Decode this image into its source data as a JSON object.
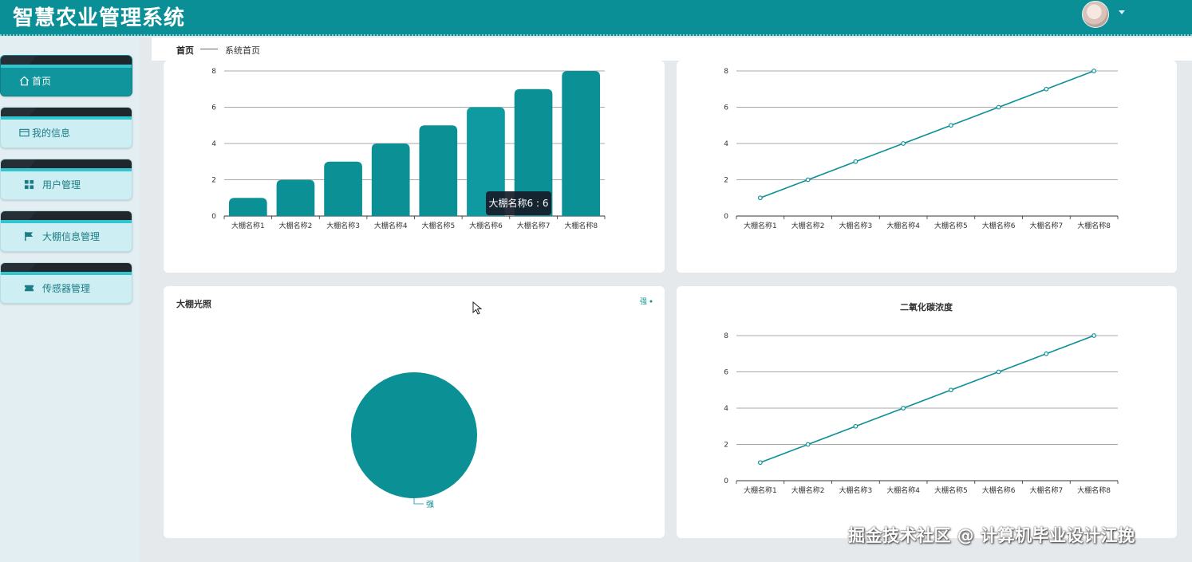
{
  "app": {
    "title": "智慧农业管理系统"
  },
  "sidebar": {
    "items": [
      {
        "label": "首页",
        "icon": "home-icon",
        "active": true
      },
      {
        "label": "我的信息",
        "icon": "id-card-icon",
        "active": false
      },
      {
        "label": "用户管理",
        "icon": "grid-icon",
        "active": false
      },
      {
        "label": "大棚信息管理",
        "icon": "flag-icon",
        "active": false
      },
      {
        "label": "传感器管理",
        "icon": "ticket-icon",
        "active": false
      }
    ]
  },
  "breadcrumb": {
    "home": "首页",
    "current": "系统首页"
  },
  "tooltip": "大棚名称6 : 6",
  "panels": {
    "light": {
      "title": "大棚光照",
      "legend": "强"
    },
    "co2": {
      "title": "二氧化碳浓度"
    }
  },
  "watermark": "掘金技术社区 @ 计算机毕业设计江挽",
  "colors": {
    "primary": "#0a8f96",
    "series": "#0b9096"
  },
  "chart_data": [
    {
      "type": "bar",
      "title": "",
      "categories": [
        "大棚名称1",
        "大棚名称2",
        "大棚名称3",
        "大棚名称4",
        "大棚名称5",
        "大棚名称6",
        "大棚名称7",
        "大棚名称8"
      ],
      "values": [
        1,
        2,
        3,
        4,
        5,
        6,
        7,
        8
      ],
      "ylim": [
        0,
        8
      ],
      "yticks": [
        0,
        2,
        4,
        6,
        8
      ],
      "grid": true
    },
    {
      "type": "line",
      "title": "",
      "categories": [
        "大棚名称1",
        "大棚名称2",
        "大棚名称3",
        "大棚名称4",
        "大棚名称5",
        "大棚名称6",
        "大棚名称7",
        "大棚名称8"
      ],
      "values": [
        1,
        2,
        3,
        4,
        5,
        6,
        7,
        8
      ],
      "ylim": [
        0,
        8
      ],
      "yticks": [
        0,
        2,
        4,
        6,
        8
      ],
      "grid": true
    },
    {
      "type": "pie",
      "title": "大棚光照",
      "slices": [
        {
          "name": "强",
          "value": 1
        }
      ],
      "legend": "top-right"
    },
    {
      "type": "line",
      "title": "二氧化碳浓度",
      "categories": [
        "大棚名称1",
        "大棚名称2",
        "大棚名称3",
        "大棚名称4",
        "大棚名称5",
        "大棚名称6",
        "大棚名称7",
        "大棚名称8"
      ],
      "values": [
        1,
        2,
        3,
        4,
        5,
        6,
        7,
        8
      ],
      "ylim": [
        0,
        8
      ],
      "yticks": [
        0,
        2,
        4,
        6,
        8
      ],
      "grid": true
    }
  ]
}
